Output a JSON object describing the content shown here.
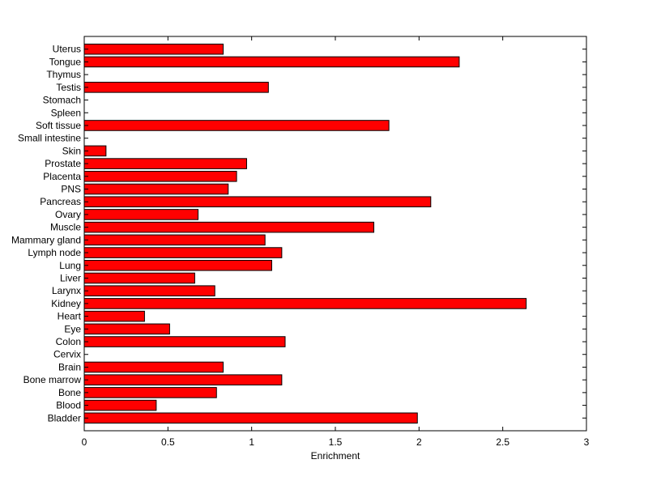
{
  "chart_data": {
    "type": "bar",
    "orientation": "horizontal",
    "title": "",
    "xlabel": "Enrichment",
    "ylabel": "",
    "xlim": [
      0,
      3
    ],
    "xticks": [
      "0",
      "0.5",
      "1",
      "1.5",
      "2",
      "2.5",
      "3"
    ],
    "grid": false,
    "legend": "none",
    "bar_color": "#ff0000",
    "edge_color": "#000000",
    "categories": [
      "Bladder",
      "Blood",
      "Bone",
      "Bone marrow",
      "Brain",
      "Cervix",
      "Colon",
      "Eye",
      "Heart",
      "Kidney",
      "Larynx",
      "Liver",
      "Lung",
      "Lymph node",
      "Mammary gland",
      "Muscle",
      "Ovary",
      "Pancreas",
      "PNS",
      "Placenta",
      "Prostate",
      "Skin",
      "Small intestine",
      "Soft tissue",
      "Spleen",
      "Stomach",
      "Testis",
      "Thymus",
      "Tongue",
      "Uterus"
    ],
    "values": [
      1.99,
      0.43,
      0.79,
      1.18,
      0.83,
      0,
      1.2,
      0.51,
      0.36,
      2.64,
      0.78,
      0.66,
      1.12,
      1.18,
      1.08,
      1.73,
      0.68,
      2.07,
      0.86,
      0.91,
      0.97,
      0.13,
      0,
      1.82,
      0,
      0,
      1.1,
      0,
      2.24,
      0.83
    ]
  }
}
